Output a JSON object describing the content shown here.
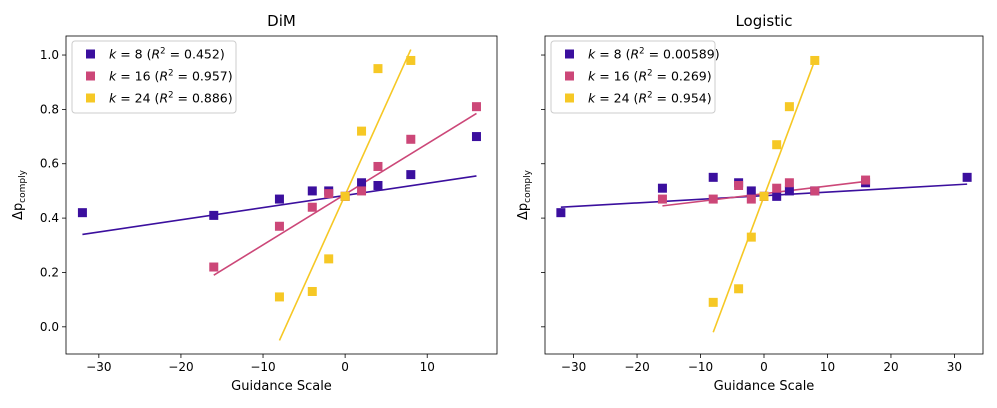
{
  "chart_data": [
    {
      "type": "scatter",
      "title": "DiM",
      "xlabel": "Guidance Scale",
      "ylabel": "Δp",
      "ylabel_sub": "comply",
      "xlim": [
        -34,
        18.5
      ],
      "ylim": [
        -0.1,
        1.07
      ],
      "xticks": [
        -30,
        -20,
        -10,
        0,
        10
      ],
      "yticks": [
        0.0,
        0.2,
        0.4,
        0.6,
        0.8,
        1.0
      ],
      "ytick_labels": [
        "0.0",
        "0.2",
        "0.4",
        "0.6",
        "0.8",
        "1.0"
      ],
      "show_y_tick_labels": true,
      "legend_position": "top-left",
      "series": [
        {
          "name": "k = 8",
          "k": "8",
          "r2": "0.452",
          "color": "#3b0f9e",
          "x": [
            -32,
            -16,
            -8,
            -4,
            -2,
            0,
            2,
            4,
            8,
            16
          ],
          "y": [
            0.42,
            0.41,
            0.47,
            0.5,
            0.5,
            0.48,
            0.53,
            0.52,
            0.56,
            0.7
          ],
          "fit": {
            "x": [
              -32,
              16
            ],
            "y": [
              0.34,
              0.555
            ]
          }
        },
        {
          "name": "k = 16",
          "k": "16",
          "r2": "0.957",
          "color": "#cc4778",
          "x": [
            -16,
            -8,
            -4,
            -2,
            0,
            2,
            4,
            8,
            16
          ],
          "y": [
            0.22,
            0.37,
            0.44,
            0.49,
            0.48,
            0.5,
            0.59,
            0.69,
            0.81
          ],
          "fit": {
            "x": [
              -16,
              16
            ],
            "y": [
              0.19,
              0.785
            ]
          }
        },
        {
          "name": "k = 24",
          "k": "24",
          "r2": "0.886",
          "color": "#f6c825",
          "x": [
            -8,
            -4,
            -2,
            0,
            2,
            4,
            8
          ],
          "y": [
            0.11,
            0.13,
            0.25,
            0.48,
            0.72,
            0.95,
            0.98
          ],
          "fit": {
            "x": [
              -8,
              8
            ],
            "y": [
              -0.05,
              1.02
            ]
          }
        }
      ]
    },
    {
      "type": "scatter",
      "title": "Logistic",
      "xlabel": "Guidance Scale",
      "ylabel": "Δp",
      "ylabel_sub": "comply",
      "xlim": [
        -34.5,
        34.5
      ],
      "ylim": [
        -0.1,
        1.07
      ],
      "xticks": [
        -30,
        -20,
        -10,
        0,
        10,
        20,
        30
      ],
      "yticks": [
        0.0,
        0.2,
        0.4,
        0.6,
        0.8,
        1.0
      ],
      "ytick_labels": [],
      "show_y_tick_labels": false,
      "legend_position": "top-left",
      "series": [
        {
          "name": "k = 8",
          "k": "8",
          "r2": "0.00589",
          "color": "#3b0f9e",
          "x": [
            -32,
            -16,
            -8,
            -4,
            -2,
            0,
            2,
            4,
            8,
            16,
            32
          ],
          "y": [
            0.42,
            0.51,
            0.55,
            0.53,
            0.5,
            0.48,
            0.48,
            0.5,
            0.5,
            0.53,
            0.55
          ],
          "fit": {
            "x": [
              -32,
              32
            ],
            "y": [
              0.44,
              0.525
            ]
          }
        },
        {
          "name": "k = 16",
          "k": "16",
          "r2": "0.269",
          "color": "#cc4778",
          "x": [
            -16,
            -8,
            -4,
            -2,
            0,
            2,
            4,
            8,
            16
          ],
          "y": [
            0.47,
            0.47,
            0.52,
            0.47,
            0.48,
            0.51,
            0.53,
            0.5,
            0.54
          ],
          "fit": {
            "x": [
              -16,
              16
            ],
            "y": [
              0.445,
              0.535
            ]
          }
        },
        {
          "name": "k = 24",
          "k": "24",
          "r2": "0.954",
          "color": "#f6c825",
          "x": [
            -8,
            -4,
            -2,
            0,
            2,
            4,
            8
          ],
          "y": [
            0.09,
            0.14,
            0.33,
            0.48,
            0.67,
            0.81,
            0.98
          ],
          "fit": {
            "x": [
              -8,
              8
            ],
            "y": [
              -0.02,
              0.98
            ]
          }
        }
      ]
    }
  ]
}
